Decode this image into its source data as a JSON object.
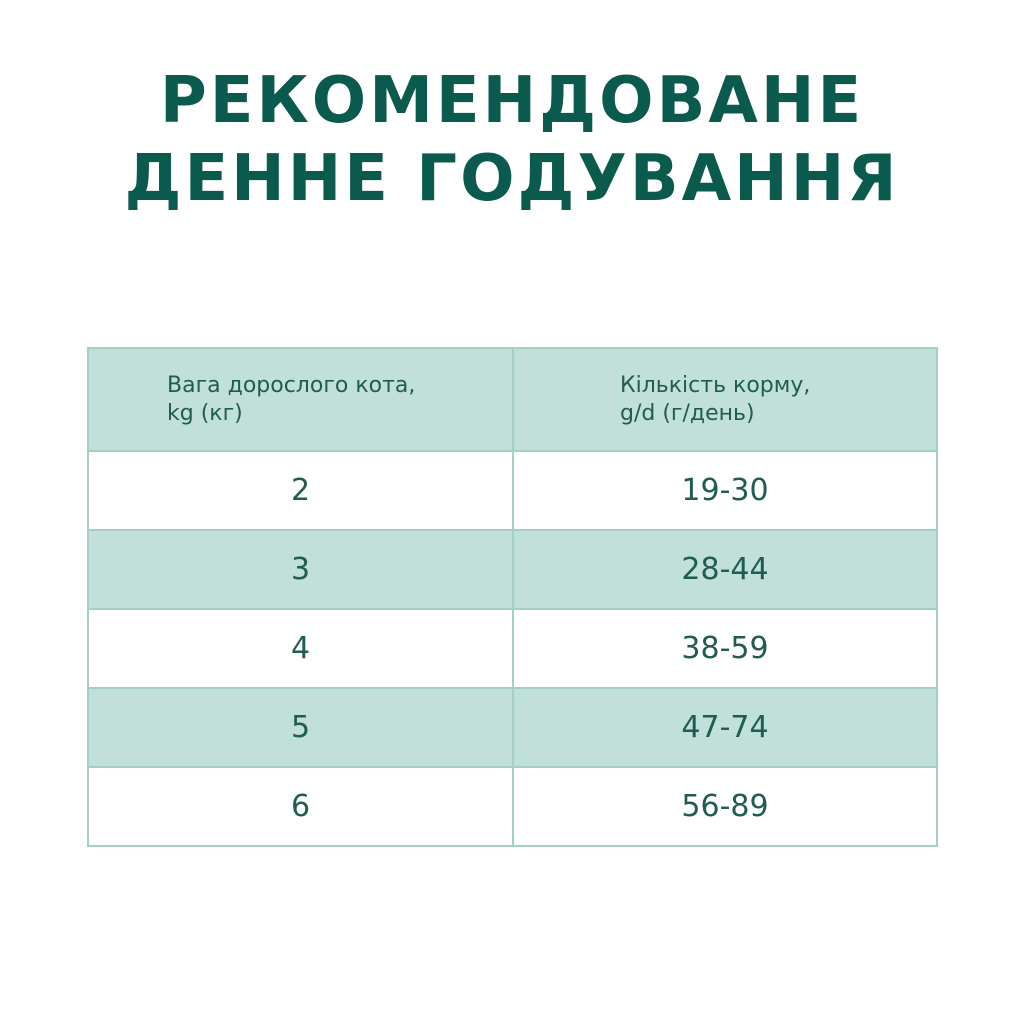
{
  "title": {
    "line1": "РЕКОМЕНДОВАНЕ",
    "line2": "ДЕННЕ ГОДУВАННЯ"
  },
  "colors": {
    "title": "#0b5a4e",
    "text": "#1f5c52",
    "header_bg": "#c2e0da",
    "border": "#a3cfc6"
  },
  "table": {
    "headers": [
      {
        "line1": "Вага дорослого кота,",
        "line2": "kg (кг)"
      },
      {
        "line1": "Кількість корму,",
        "line2": "g/d (г/день)"
      }
    ],
    "rows": [
      {
        "weight": "2",
        "amount": "19-30"
      },
      {
        "weight": "3",
        "amount": "28-44"
      },
      {
        "weight": "4",
        "amount": "38-59"
      },
      {
        "weight": "5",
        "amount": "47-74"
      },
      {
        "weight": "6",
        "amount": "56-89"
      }
    ]
  }
}
